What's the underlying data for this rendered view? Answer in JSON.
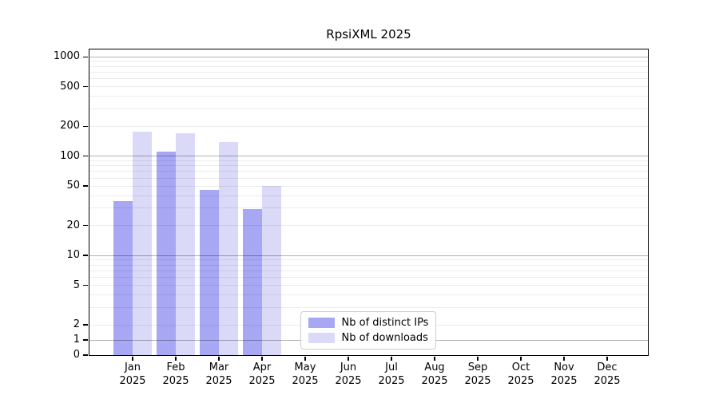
{
  "chart_data": {
    "type": "bar",
    "title": "RpsiXML 2025",
    "categories": [
      "Jan 2025",
      "Feb 2025",
      "Mar 2025",
      "Apr 2025",
      "May 2025",
      "Jun 2025",
      "Jul 2025",
      "Aug 2025",
      "Sep 2025",
      "Oct 2025",
      "Nov 2025",
      "Dec 2025"
    ],
    "series": [
      {
        "name": "Nb of distinct IPs",
        "color": "#a7a7f3",
        "values": [
          35,
          110,
          45,
          29,
          null,
          null,
          null,
          null,
          null,
          null,
          null,
          null
        ]
      },
      {
        "name": "Nb of downloads",
        "color": "#dadaf8",
        "values": [
          175,
          168,
          138,
          50,
          null,
          null,
          null,
          null,
          null,
          null,
          null,
          null
        ]
      }
    ],
    "xlabel": "",
    "ylabel": "",
    "yscale": "symlog",
    "yticks": [
      0,
      1,
      2,
      5,
      10,
      20,
      50,
      100,
      200,
      500,
      1000
    ],
    "ylim": [
      0,
      1200
    ],
    "grid": "horizontal major and log-minor gridlines",
    "legend_position": "lower center"
  },
  "colors": {
    "axis": "#000000",
    "grid_major": "rgba(0,0,0,0.30)",
    "grid_minor": "rgba(0,0,0,0.075)",
    "legend_border": "#cccccc"
  }
}
